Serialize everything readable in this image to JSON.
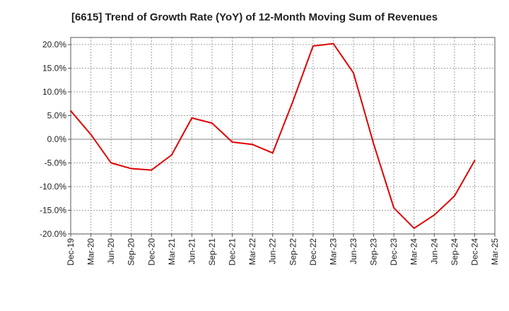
{
  "chart_data": {
    "type": "line",
    "title": "[6615]  Trend of Growth Rate (YoY) of 12-Month Moving Sum of Revenues",
    "xlabel": "",
    "ylabel": "",
    "categories": [
      "Dec-19",
      "Mar-20",
      "Jun-20",
      "Sep-20",
      "Dec-20",
      "Mar-21",
      "Jun-21",
      "Sep-21",
      "Dec-21",
      "Mar-22",
      "Jun-22",
      "Sep-22",
      "Dec-22",
      "Mar-23",
      "Jun-23",
      "Sep-23",
      "Dec-23",
      "Mar-24",
      "Jun-24",
      "Sep-24",
      "Dec-24",
      "Mar-25"
    ],
    "y_tick_labels": [
      "20.0%",
      "15.0%",
      "10.0%",
      "5.0%",
      "0.0%",
      "-5.0%",
      "-10.0%",
      "-15.0%",
      "-20.0%"
    ],
    "y_ticks": [
      20,
      15,
      10,
      5,
      0,
      -5,
      -10,
      -15,
      -20
    ],
    "ylim": [
      -20,
      21.5
    ],
    "grid": true,
    "line_color": "#e00000",
    "series": [
      {
        "values": [
          6.0,
          1.0,
          -5.0,
          -6.2,
          -6.5,
          -3.3,
          4.5,
          3.4,
          -0.6,
          -1.1,
          -2.9,
          8.0,
          19.7,
          20.2,
          14.0,
          -1.0,
          -14.5,
          -18.8,
          -16.0,
          -12.0,
          -4.5,
          null
        ]
      }
    ]
  }
}
